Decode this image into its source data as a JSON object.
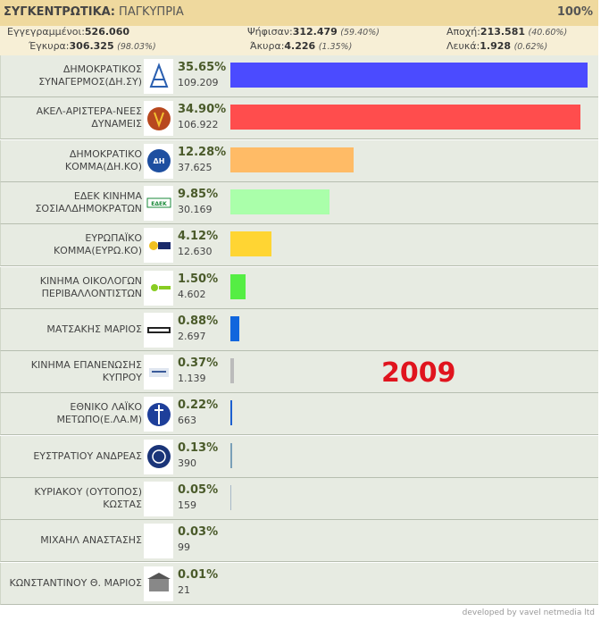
{
  "header": {
    "title_prefix": "ΣΥΓΚΕΝΤΡΩΤΙΚΑ:",
    "title_region": "ΠΑΓΚΥΠΡΙΑ",
    "counted_pct": "100%"
  },
  "stats": {
    "registered_label": "Εγγεγραμμένοι:",
    "registered_value": "526.060",
    "voted_label": "Ψήφισαν:",
    "voted_value": "312.479",
    "voted_pct": "(59.40%)",
    "abstain_label": "Αποχή:",
    "abstain_value": "213.581",
    "abstain_pct": "(40.60%)",
    "valid_label": "Έγκυρα:",
    "valid_value": "306.325",
    "valid_pct": "(98.03%)",
    "invalid_label": "Άκυρα:",
    "invalid_value": "4.226",
    "invalid_pct": "(1.35%)",
    "blank_label": "Λευκά:",
    "blank_value": "1.928",
    "blank_pct": "(0.62%)"
  },
  "year_label": "2009",
  "footer": "developed by vavel netmedia ltd",
  "chart_data": {
    "type": "bar",
    "orientation": "horizontal",
    "categories": [
      "ΔΗΜΟΚΡΑΤΙΚΟΣ ΣΥΝΑΓΕΡΜΟΣ(ΔΗ.ΣΥ)",
      "ΑΚΕΛ-ΑΡΙΣΤΕΡΑ-ΝΕΕΣ ΔΥΝΑΜΕΙΣ",
      "ΔΗΜΟΚΡΑΤΙΚΟ ΚΟΜΜΑ(ΔΗ.ΚΟ)",
      "ΕΔΕΚ ΚΙΝΗΜΑ ΣΟΣΙΑΛΔΗΜΟΚΡΑΤΩΝ",
      "ΕΥΡΩΠΑΪΚΟ ΚΟΜΜΑ(ΕΥΡΩ.ΚΟ)",
      "ΚΙΝΗΜΑ ΟΙΚΟΛΟΓΩΝ ΠΕΡΙΒΑΛΛΟΝΤΙΣΤΩΝ",
      "ΜΑΤΣΑΚΗΣ ΜΑΡΙΟΣ",
      "ΚΙΝΗΜΑ ΕΠΑΝΕΝΩΣΗΣ ΚΥΠΡΟΥ",
      "ΕΘΝΙΚΟ ΛΑΪΚΟ ΜΕΤΩΠΟ(Ε.ΛΑ.Μ)",
      "ΕΥΣΤΡΑΤΙΟΥ ΑΝΔΡΕΑΣ",
      "ΚΥΡΙΑΚΟΥ (ΟΥΤΟΠΟΣ) ΚΩΣΤΑΣ",
      "ΜΙΧΑΗΛ ΑΝΑΣΤΑΣΗΣ",
      "ΚΩΝΣΤΑΝΤΙΝΟΥ Θ. ΜΑΡΙΟΣ"
    ],
    "percent_labels": [
      "35.65%",
      "34.90%",
      "12.28%",
      "9.85%",
      "4.12%",
      "1.50%",
      "0.88%",
      "0.37%",
      "0.22%",
      "0.13%",
      "0.05%",
      "0.03%",
      "0.01%"
    ],
    "vote_labels": [
      "109.209",
      "106.922",
      "37.625",
      "30.169",
      "12.630",
      "4.602",
      "2.697",
      "1.139",
      "663",
      "390",
      "159",
      "99",
      "21"
    ],
    "values": [
      35.65,
      34.9,
      12.28,
      9.85,
      4.12,
      1.5,
      0.88,
      0.37,
      0.22,
      0.13,
      0.05,
      0.03,
      0.01
    ],
    "colors": [
      "#4b4bff",
      "#ff4d4d",
      "#ffbb66",
      "#aaffaa",
      "#ffd533",
      "#55ee44",
      "#1166dd",
      "#bbbbbb",
      "#1c5fd0",
      "#7aa0b8",
      "#a8b8c8",
      "#cccccc",
      "#cccccc"
    ],
    "logo_icons": [
      "disy-logo-icon",
      "akel-logo-icon",
      "diko-logo-icon",
      "edek-logo-icon",
      "evroko-logo-icon",
      "ecologists-logo-icon",
      "matsakis-logo-icon",
      "epanenosis-logo-icon",
      "elam-logo-icon",
      "efstratiou-logo-icon",
      "blank-logo",
      "blank-logo",
      "building-logo-icon"
    ]
  }
}
